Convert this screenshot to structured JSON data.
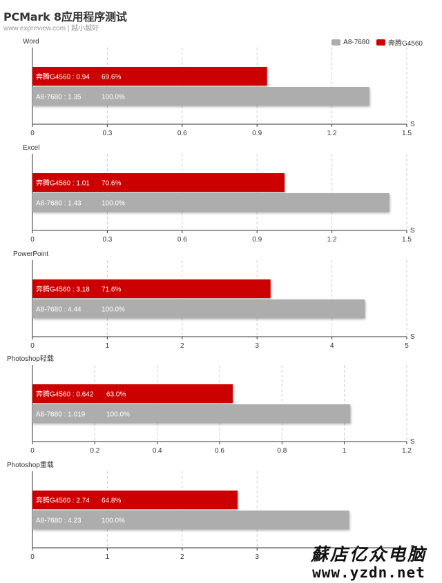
{
  "page": {
    "title": "PCMark 8应用程序测试",
    "subtitle": "www.expreview.com | 越小越好"
  },
  "legend": {
    "items": [
      {
        "label": "A8-7680",
        "color": "#adadad"
      },
      {
        "label": "奔腾G4560",
        "color": "#cc0000"
      }
    ],
    "placement": "top-right"
  },
  "colors": {
    "grey_bar": "#adadad",
    "red_bar": "#cc0000",
    "axis": "#333333",
    "grid": "#cccccc"
  },
  "watermark": {
    "chinese": "蘇店亿众电脑",
    "url": "www.yzdn.net"
  },
  "chart_data": [
    {
      "type": "bar",
      "orientation": "horizontal",
      "title": "Word",
      "unit": "S",
      "xlim": [
        0,
        1.5
      ],
      "ticks": [
        "0",
        "0.3",
        "0.6",
        "0.9",
        "1.2",
        "1.5"
      ],
      "grid": true,
      "series": [
        {
          "name": "奔腾G4560",
          "value": 0.94,
          "value_label": "0.94",
          "percent": "69.6%"
        },
        {
          "name": "A8-7680",
          "value": 1.35,
          "value_label": "1.35",
          "percent": "100.0%"
        }
      ]
    },
    {
      "type": "bar",
      "orientation": "horizontal",
      "title": "Excel",
      "unit": "S",
      "xlim": [
        0,
        1.5
      ],
      "ticks": [
        "0",
        "0.3",
        "0.6",
        "0.9",
        "1.2",
        "1.5"
      ],
      "grid": true,
      "series": [
        {
          "name": "奔腾G4560",
          "value": 1.01,
          "value_label": "1.01",
          "percent": "70.6%"
        },
        {
          "name": "A8-7680",
          "value": 1.43,
          "value_label": "1.43",
          "percent": "100.0%"
        }
      ]
    },
    {
      "type": "bar",
      "orientation": "horizontal",
      "title": "PowerPoint",
      "unit": "S",
      "xlim": [
        0,
        5
      ],
      "ticks": [
        "0",
        "1",
        "2",
        "3",
        "4",
        "5"
      ],
      "grid": true,
      "series": [
        {
          "name": "奔腾G4560",
          "value": 3.18,
          "value_label": "3.18",
          "percent": "71.6%"
        },
        {
          "name": "A8-7680",
          "value": 4.44,
          "value_label": "4.44",
          "percent": "100.0%"
        }
      ]
    },
    {
      "type": "bar",
      "orientation": "horizontal",
      "title": "Photoshop轻载",
      "unit": "S",
      "xlim": [
        0,
        1.2
      ],
      "ticks": [
        "0",
        "0.2",
        "0.4",
        "0.6",
        "0.8",
        "1",
        "1.2"
      ],
      "grid": true,
      "series": [
        {
          "name": "奔腾G4560",
          "value": 0.642,
          "value_label": "0.642",
          "percent": "63.0%"
        },
        {
          "name": "A8-7680",
          "value": 1.019,
          "value_label": "1.019",
          "percent": "100.0%"
        }
      ]
    },
    {
      "type": "bar",
      "orientation": "horizontal",
      "title": "Photoshop重载",
      "unit": "S",
      "xlim": [
        0,
        5
      ],
      "ticks": [
        "0",
        "1",
        "2",
        "3"
      ],
      "grid": true,
      "series": [
        {
          "name": "奔腾G4560",
          "value": 2.74,
          "value_label": "2.74",
          "percent": "64.8%"
        },
        {
          "name": "A8-7680",
          "value": 4.23,
          "value_label": "4.23",
          "percent": "100.0%"
        }
      ]
    }
  ]
}
